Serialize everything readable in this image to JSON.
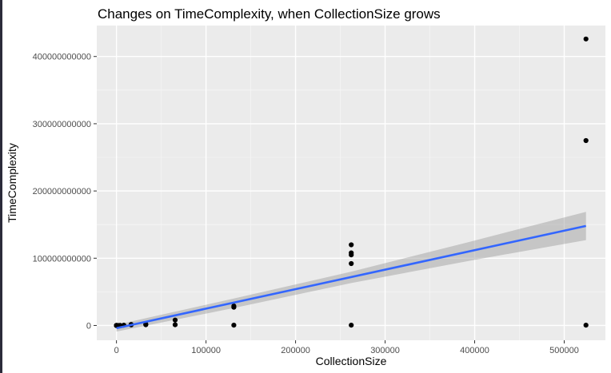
{
  "chart_data": {
    "type": "scatter",
    "title": "Changes on TimeComplexity, when CollectionSize grows",
    "xlabel": "CollectionSize",
    "ylabel": "TimeComplexity",
    "xlim": [
      -22000,
      546000
    ],
    "ylim": [
      -22000000000,
      446000000000
    ],
    "x_ticks": [
      0,
      100000,
      200000,
      300000,
      400000,
      500000
    ],
    "x_tick_labels": [
      "0",
      "100000",
      "200000",
      "300000",
      "400000",
      "500000"
    ],
    "y_ticks": [
      0,
      100000000000,
      200000000000,
      300000000000,
      400000000000
    ],
    "y_tick_labels": [
      "0",
      "100000000000",
      "200000000000",
      "300000000000",
      "400000000000"
    ],
    "grid": true,
    "colors": {
      "panel_background": "#ebebeb",
      "grid_major": "#ffffff",
      "grid_minor": "#f5f5f5",
      "points": "#000000",
      "fit_line": "#3366ff",
      "confidence_band": "#999999"
    },
    "series": [
      {
        "type": "scatter",
        "x": [
          1,
          2,
          4,
          8,
          16,
          32,
          64,
          128,
          256,
          512,
          1024,
          2048,
          4096,
          8192,
          16384,
          16384,
          32768,
          32768,
          65536,
          65536,
          131072,
          131072,
          131072,
          262144,
          262144,
          262144,
          262144,
          262144,
          524288,
          524288,
          524288
        ],
        "y": [
          0,
          0,
          0,
          0,
          0,
          0,
          0,
          0,
          0,
          0,
          0,
          0,
          100000000,
          400000000,
          800000000,
          1500000000,
          1000000000,
          2000000000,
          1000000000,
          8000000000,
          500000000,
          27000000000,
          29000000000,
          500000000,
          92000000000,
          105000000000,
          108000000000,
          120000000000,
          500000000,
          275000000000,
          426000000000
        ]
      },
      {
        "type": "line",
        "x": [
          0,
          524288
        ],
        "y": [
          -4000000000,
          148000000000
        ],
        "band_x": [
          0,
          131072,
          262144,
          393216,
          524288
        ],
        "band_lower": [
          -9000000000,
          26000000000,
          63000000000,
          96000000000,
          127000000000
        ],
        "band_upper": [
          1000000000,
          40000000000,
          80000000000,
          124000000000,
          169000000000
        ]
      }
    ]
  }
}
